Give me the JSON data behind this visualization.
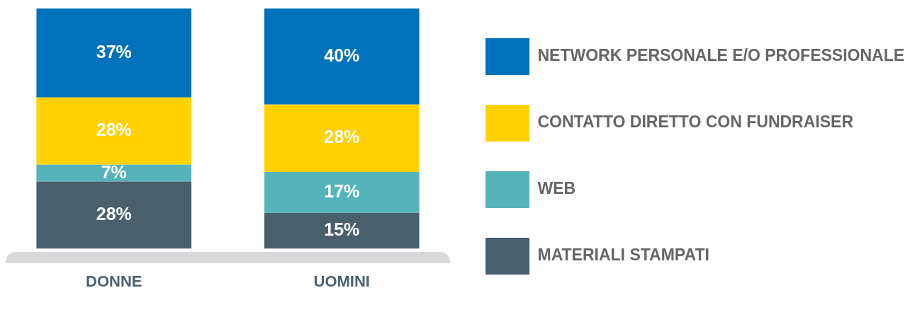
{
  "chart_data": {
    "type": "bar",
    "stacked": true,
    "categories": [
      "DONNE",
      "UOMINI"
    ],
    "series": [
      {
        "name": "MATERIALI STAMPATI",
        "color": "#485f6e",
        "values": [
          28,
          15
        ],
        "value_labels": [
          "28%",
          "15%"
        ]
      },
      {
        "name": "WEB",
        "color": "#55b4ba",
        "values": [
          7,
          17
        ],
        "value_labels": [
          "7%",
          "17%"
        ]
      },
      {
        "name": "CONTATTO DIRETTO CON FUNDRAISER",
        "color": "#ffd200",
        "values": [
          28,
          28
        ],
        "value_labels": [
          "28%",
          "28%"
        ]
      },
      {
        "name": "NETWORK PERSONALE E/O PROFESSIONALE",
        "color": "#0071bb",
        "values": [
          37,
          40
        ],
        "value_labels": [
          "37%",
          "40%"
        ]
      }
    ],
    "legend": "right",
    "grid": false
  }
}
